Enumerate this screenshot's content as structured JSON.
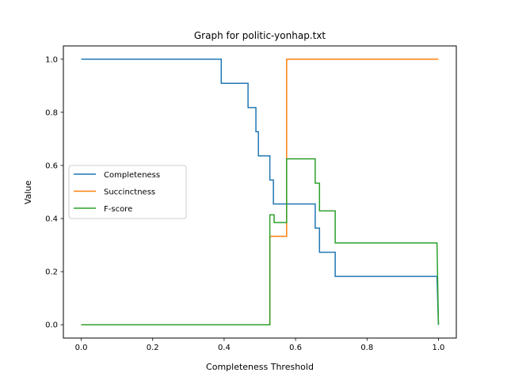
{
  "chart_data": {
    "type": "line",
    "title": "Graph for politic-yonhap.txt",
    "xlabel": "Completeness Threshold",
    "ylabel": "Value",
    "xlim": [
      -0.05,
      1.05
    ],
    "ylim": [
      -0.05,
      1.05
    ],
    "xticks": [
      0.0,
      0.2,
      0.4,
      0.6,
      0.8,
      1.0
    ],
    "xtick_labels": [
      "0.0",
      "0.2",
      "0.4",
      "0.6",
      "0.8",
      "1.0"
    ],
    "yticks": [
      0.0,
      0.2,
      0.4,
      0.6,
      0.8,
      1.0
    ],
    "ytick_labels": [
      "0.0",
      "0.2",
      "0.4",
      "0.6",
      "0.8",
      "1.0"
    ],
    "grid": false,
    "legend_position": "center-left",
    "series": [
      {
        "name": "Completeness",
        "color": "#1f77b4",
        "step": true,
        "points": [
          [
            0.0,
            1.0
          ],
          [
            0.392,
            1.0
          ],
          [
            0.392,
            0.909
          ],
          [
            0.467,
            0.909
          ],
          [
            0.467,
            0.818
          ],
          [
            0.489,
            0.818
          ],
          [
            0.489,
            0.727
          ],
          [
            0.496,
            0.727
          ],
          [
            0.496,
            0.636
          ],
          [
            0.528,
            0.636
          ],
          [
            0.528,
            0.545
          ],
          [
            0.538,
            0.545
          ],
          [
            0.538,
            0.455
          ],
          [
            0.655,
            0.455
          ],
          [
            0.655,
            0.364
          ],
          [
            0.667,
            0.364
          ],
          [
            0.667,
            0.273
          ],
          [
            0.711,
            0.273
          ],
          [
            0.711,
            0.182
          ],
          [
            0.996,
            0.182
          ],
          [
            0.998,
            0.09
          ],
          [
            1.0,
            0.0
          ]
        ]
      },
      {
        "name": "Succinctness",
        "color": "#ff7f0e",
        "step": true,
        "points": [
          [
            0.0,
            0.0
          ],
          [
            0.528,
            0.0
          ],
          [
            0.528,
            0.333
          ],
          [
            0.575,
            0.333
          ],
          [
            0.575,
            1.0
          ],
          [
            1.0,
            1.0
          ]
        ]
      },
      {
        "name": "F-score",
        "color": "#2ca02c",
        "step": true,
        "points": [
          [
            0.0,
            0.0
          ],
          [
            0.528,
            0.0
          ],
          [
            0.528,
            0.414
          ],
          [
            0.54,
            0.414
          ],
          [
            0.54,
            0.385
          ],
          [
            0.575,
            0.385
          ],
          [
            0.575,
            0.625
          ],
          [
            0.655,
            0.625
          ],
          [
            0.655,
            0.533
          ],
          [
            0.667,
            0.533
          ],
          [
            0.667,
            0.429
          ],
          [
            0.711,
            0.429
          ],
          [
            0.711,
            0.308
          ],
          [
            0.996,
            0.308
          ],
          [
            0.998,
            0.15
          ],
          [
            1.0,
            0.0
          ]
        ]
      }
    ]
  }
}
